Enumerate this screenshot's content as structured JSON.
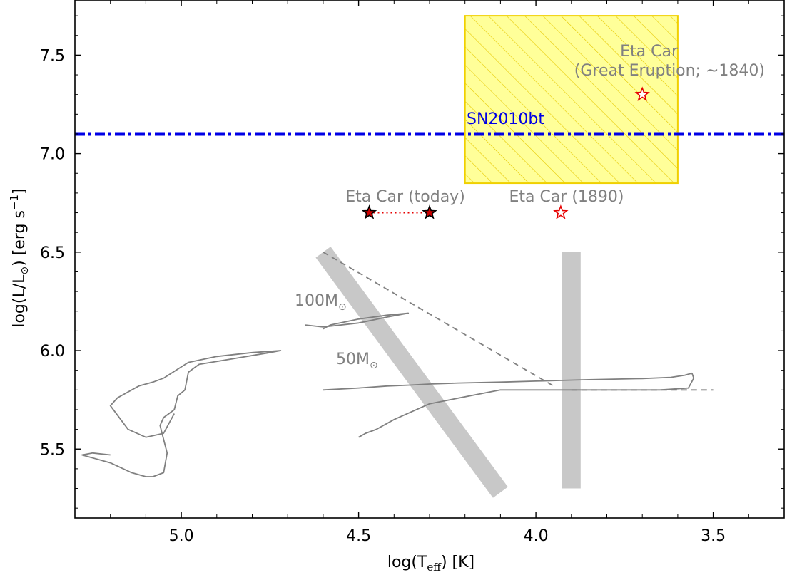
{
  "chart_data": {
    "type": "scatter",
    "title": "",
    "xlabel": "log(T",
    "xlabel_sub": "eff",
    "xlabel_tail": ") [K]",
    "ylabel": "log(L/L",
    "ylabel_sun": "⊙",
    "ylabel_tail": ") [erg s",
    "ylabel_sup": "−1",
    "ylabel_close": "]",
    "xlim": [
      5.3,
      3.3
    ],
    "ylim": [
      5.15,
      7.78
    ],
    "x_inverted": true,
    "xticks": [
      5.0,
      4.5,
      4.0,
      3.5
    ],
    "xtick_labels": [
      "5.0",
      "4.5",
      "4.0",
      "3.5"
    ],
    "yticks": [
      5.5,
      6.0,
      6.5,
      7.0,
      7.5
    ],
    "ytick_labels": [
      "5.5",
      "6.0",
      "6.5",
      "7.0",
      "7.5"
    ],
    "grid": false,
    "colors": {
      "track": "#808080",
      "band": "#c8c8c8",
      "sn_line": "#0000e6",
      "box_fill": "#ffff99",
      "box_edge": "#f0d000",
      "star_edge": "#e60000",
      "star_fill": "#cc0000"
    },
    "sn_line": {
      "name": "SN2010bt",
      "y": 7.1
    },
    "eruption_box": {
      "x": [
        4.2,
        3.6
      ],
      "y": [
        6.85,
        7.7
      ]
    },
    "points": [
      {
        "name": "Eta Car (today)",
        "x": 4.47,
        "y": 6.7,
        "style": "filled"
      },
      {
        "name": "Eta Car (today)",
        "x": 4.3,
        "y": 6.7,
        "style": "filled"
      },
      {
        "name": "Eta Car (1890)",
        "x": 3.93,
        "y": 6.7,
        "style": "open"
      },
      {
        "name": "Eta Car (Great Eruption; ~1840)",
        "x": 3.7,
        "y": 7.3,
        "style": "open"
      }
    ],
    "connector": {
      "x": [
        4.47,
        4.3
      ],
      "y": [
        6.7,
        6.7
      ]
    },
    "labels": {
      "eta_today": "Eta Car (today)",
      "eta_1890": "Eta Car (1890)",
      "eta_great_line1": "Eta Car",
      "eta_great_line2": "(Great Eruption; ~1840)",
      "sn": "SN2010bt",
      "track100_mass": "100M",
      "track50_mass": "50M",
      "sun_symbol": "⊙"
    },
    "bands": [
      {
        "name": "diagonal-band",
        "x": [
          4.6,
          4.1
        ],
        "y": [
          6.5,
          5.28
        ]
      },
      {
        "name": "vertical-band",
        "x": [
          3.9,
          3.9
        ],
        "y": [
          6.5,
          5.3
        ]
      }
    ],
    "dashed_lines": [
      {
        "name": "diagonal-dashed",
        "x": [
          4.6,
          3.95
        ],
        "y": [
          6.5,
          5.82
        ]
      },
      {
        "name": "horizontal-dashed",
        "x": [
          3.9,
          3.5
        ],
        "y": [
          5.8,
          5.8
        ]
      }
    ],
    "tracks": [
      {
        "name": "100M",
        "x": [
          4.65,
          4.6,
          4.5,
          4.42,
          4.36,
          4.42,
          4.5,
          4.58,
          4.6
        ],
        "y": [
          6.13,
          6.12,
          6.14,
          6.17,
          6.19,
          6.18,
          6.16,
          6.13,
          6.11
        ]
      },
      {
        "name": "50M",
        "x": [
          4.6,
          4.5,
          4.42,
          4.35,
          4.3,
          4.22,
          4.1,
          4.0,
          3.9,
          3.85,
          3.78,
          3.7,
          3.62,
          3.58,
          3.56,
          3.555,
          3.57,
          3.65,
          3.75,
          3.85,
          3.95,
          4.05,
          4.1,
          4.13,
          4.3,
          4.4,
          4.45,
          4.48,
          4.5
        ],
        "y": [
          5.8,
          5.81,
          5.82,
          5.825,
          5.83,
          5.835,
          5.84,
          5.845,
          5.85,
          5.852,
          5.855,
          5.858,
          5.864,
          5.875,
          5.885,
          5.86,
          5.81,
          5.8,
          5.8,
          5.8,
          5.8,
          5.8,
          5.8,
          5.79,
          5.73,
          5.65,
          5.6,
          5.58,
          5.56
        ]
      },
      {
        "name": "low-mass",
        "x": [
          5.2,
          5.25,
          5.28,
          5.2,
          5.14,
          5.1,
          5.08,
          5.05,
          5.04,
          5.06,
          5.05,
          5.02,
          5.01,
          4.99,
          4.98,
          4.95,
          4.85,
          4.75,
          4.72,
          4.8,
          4.9,
          4.98,
          5.05,
          5.08,
          5.12,
          5.14,
          5.18,
          5.2,
          5.15,
          5.1,
          5.05,
          5.02
        ],
        "y": [
          5.47,
          5.48,
          5.47,
          5.43,
          5.38,
          5.36,
          5.36,
          5.38,
          5.48,
          5.62,
          5.66,
          5.7,
          5.77,
          5.8,
          5.89,
          5.93,
          5.96,
          5.99,
          6.0,
          5.99,
          5.97,
          5.94,
          5.86,
          5.84,
          5.82,
          5.8,
          5.76,
          5.72,
          5.6,
          5.56,
          5.58,
          5.68
        ]
      }
    ]
  }
}
